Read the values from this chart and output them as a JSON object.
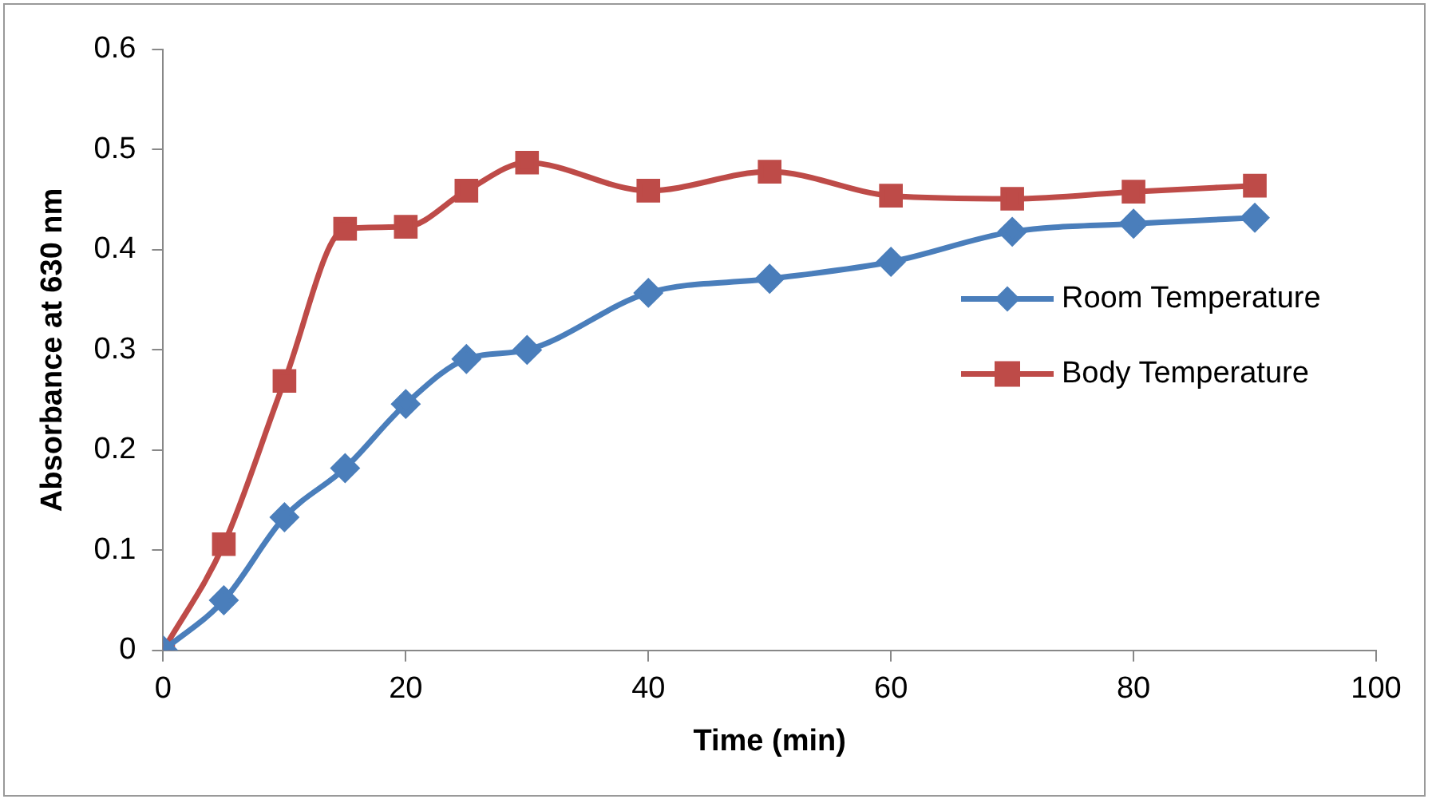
{
  "chart_data": {
    "type": "line",
    "xlabel": "Time (min)",
    "ylabel": "Absorbance at 630 nm",
    "xlim": [
      0,
      100
    ],
    "xticks": [
      0,
      20,
      40,
      60,
      80,
      100
    ],
    "ylim": [
      0,
      0.6
    ],
    "yticks": [
      0,
      0.1,
      0.2,
      0.3,
      0.4,
      0.5,
      0.6
    ],
    "grid": false,
    "legend": "right",
    "series": [
      {
        "name": "Room Temperature",
        "color": "#4a7ebb",
        "marker": "diamond",
        "x": [
          0,
          5,
          10,
          15,
          20,
          25,
          30,
          40,
          50,
          60,
          70,
          80,
          90
        ],
        "values": [
          0,
          0.05,
          0.133,
          0.182,
          0.246,
          0.291,
          0.3,
          0.357,
          0.371,
          0.388,
          0.418,
          0.426,
          0.432
        ]
      },
      {
        "name": "Body Temperature",
        "color": "#be4b48",
        "marker": "square",
        "x": [
          0,
          5,
          10,
          15,
          20,
          25,
          30,
          40,
          50,
          60,
          70,
          80,
          90
        ],
        "values": [
          0,
          0.106,
          0.269,
          0.421,
          0.423,
          0.459,
          0.487,
          0.459,
          0.478,
          0.454,
          0.451,
          0.458,
          0.464
        ]
      }
    ]
  }
}
